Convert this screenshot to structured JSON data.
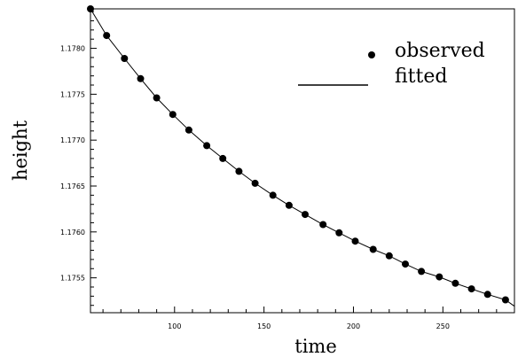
{
  "chart_data": {
    "type": "scatter",
    "title": "",
    "xlabel": "time",
    "ylabel": "height",
    "xlim": [
      53,
      290
    ],
    "ylim": [
      1.17512,
      1.17843
    ],
    "x_ticks": [
      100,
      150,
      200,
      250
    ],
    "x_tick_labels": [
      "100",
      "150",
      "200",
      "250"
    ],
    "y_ticks": [
      1.1755,
      1.176,
      1.1765,
      1.177,
      1.1775,
      1.178
    ],
    "y_tick_labels": [
      "1.1755",
      "1.1760",
      "1.1765",
      "1.1770",
      "1.1775",
      "1.1780"
    ],
    "grid": false,
    "legend_position": "top-right",
    "series": [
      {
        "name": "observed",
        "kind": "points",
        "x": [
          53,
          62,
          72,
          81,
          90,
          99,
          108,
          118,
          127,
          136,
          145,
          155,
          164,
          173,
          183,
          192,
          201,
          211,
          220,
          229,
          238,
          248,
          257,
          266,
          275,
          285
        ],
        "y": [
          1.17843,
          1.17814,
          1.17789,
          1.17767,
          1.17746,
          1.17728,
          1.17711,
          1.17694,
          1.1768,
          1.17666,
          1.17653,
          1.1764,
          1.17629,
          1.17619,
          1.17608,
          1.17599,
          1.1759,
          1.17581,
          1.17574,
          1.17565,
          1.17557,
          1.17551,
          1.17544,
          1.17538,
          1.17532,
          1.17526
        ]
      },
      {
        "name": "fitted",
        "kind": "line",
        "x": [
          53,
          62,
          72,
          81,
          90,
          99,
          108,
          118,
          127,
          136,
          145,
          155,
          164,
          173,
          183,
          192,
          201,
          211,
          220,
          229,
          238,
          248,
          257,
          266,
          275,
          285,
          290
        ],
        "y": [
          1.17843,
          1.17814,
          1.17789,
          1.17767,
          1.17746,
          1.17728,
          1.17711,
          1.17694,
          1.1768,
          1.17666,
          1.17653,
          1.1764,
          1.17629,
          1.17619,
          1.17608,
          1.17599,
          1.1759,
          1.17581,
          1.17574,
          1.17565,
          1.17557,
          1.17551,
          1.17544,
          1.17538,
          1.17532,
          1.17526,
          1.17519
        ]
      }
    ]
  },
  "legend": {
    "observed_label": "observed",
    "fitted_label": "fitted"
  }
}
